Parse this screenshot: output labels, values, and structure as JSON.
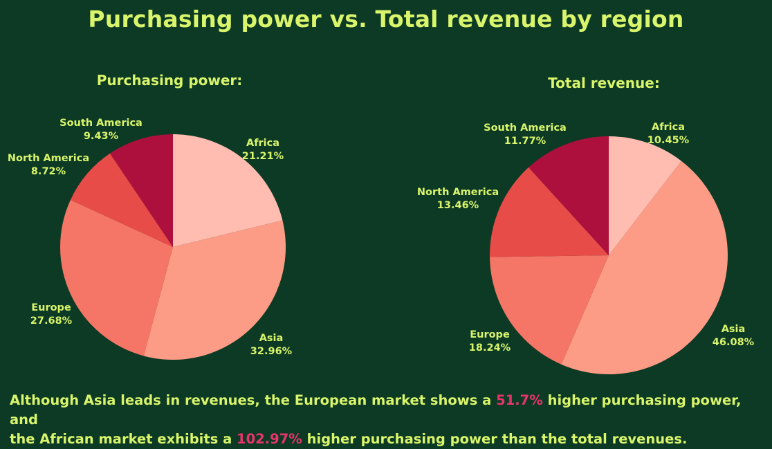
{
  "title": "Purchasing power vs. Total revenue by region",
  "colors": {
    "background": "#0d3a24",
    "text": "#d9f56b",
    "highlight": "#e8346a"
  },
  "chart_data": [
    {
      "type": "pie",
      "title": "Purchasing power:",
      "categories": [
        "Africa",
        "Asia",
        "Europe",
        "North America",
        "South America"
      ],
      "values": [
        21.21,
        32.96,
        27.68,
        8.72,
        9.43
      ],
      "labels": [
        "21.21%",
        "32.96%",
        "27.68%",
        "8.72%",
        "9.43%"
      ],
      "colors": [
        "#ffbcb0",
        "#fc9c86",
        "#f57666",
        "#e84c49",
        "#ad103c"
      ]
    },
    {
      "type": "pie",
      "title": "Total revenue:",
      "categories": [
        "Africa",
        "Asia",
        "Europe",
        "North America",
        "South America"
      ],
      "values": [
        10.45,
        46.08,
        18.24,
        13.46,
        11.77
      ],
      "labels": [
        "10.45%",
        "46.08%",
        "18.24%",
        "13.46%",
        "11.77%"
      ],
      "colors": [
        "#ffbcb0",
        "#fc9c86",
        "#f57666",
        "#e84c49",
        "#ad103c"
      ]
    }
  ],
  "footer": {
    "line1_a": "Although Asia leads in revenues, the European market shows a ",
    "line1_hl": "51.7%",
    "line1_b": " higher purchasing power, and",
    "line2_a": "the African market exhibits a ",
    "line2_hl": "102.97%",
    "line2_b": " higher purchasing power than the total revenues."
  }
}
